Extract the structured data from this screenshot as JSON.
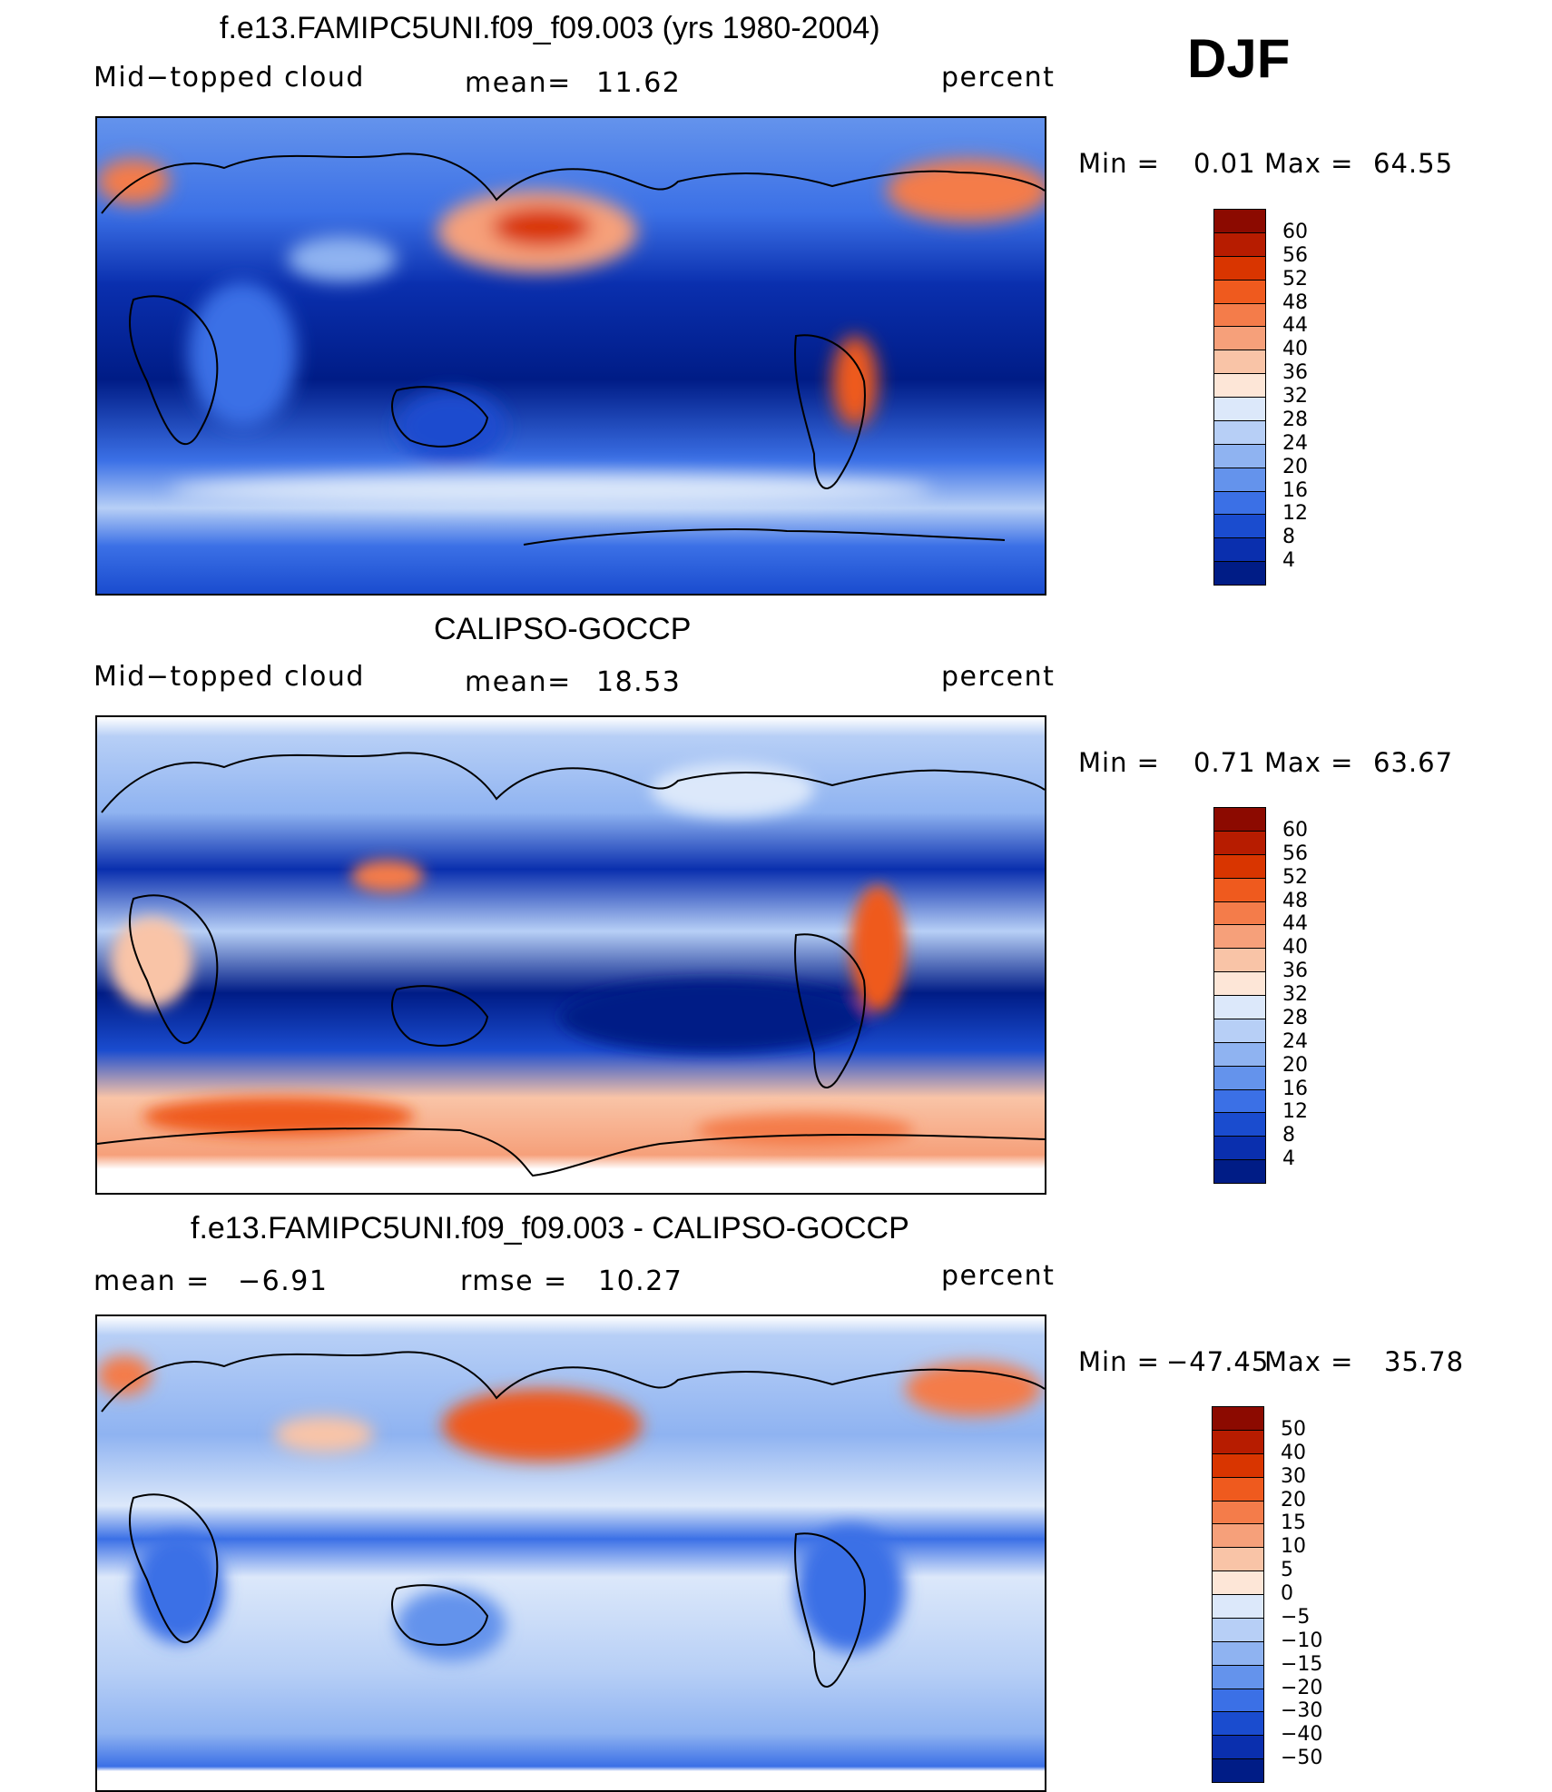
{
  "season": "DJF",
  "panels": [
    {
      "title": "f.e13.FAMIPC5UNI.f09_f09.003 (yrs 1980-2004)",
      "left_label": "Mid−topped  cloud",
      "center_label": "mean=",
      "center_value": "11.62",
      "right_label": "percent",
      "min_label": "Min  =",
      "min_value": "0.01",
      "max_label": "Max  =",
      "max_value": "64.55",
      "colorbar_ticks": [
        "60",
        "56",
        "52",
        "48",
        "44",
        "40",
        "36",
        "32",
        "28",
        "24",
        "20",
        "16",
        "12",
        "8",
        "4"
      ],
      "colorbar_colors": [
        "#8c0a00",
        "#b71c00",
        "#d93500",
        "#ef5a1e",
        "#f47c4a",
        "#f6a07a",
        "#f9c4a7",
        "#fde6d7",
        "#dce8fa",
        "#b7cff6",
        "#8fb3f1",
        "#6493ec",
        "#3b70e6",
        "#1a4ccf",
        "#0a2fae",
        "#001c86"
      ],
      "chart_data": {
        "type": "heatmap",
        "title": "f.e13.FAMIPC5UNI.f09_f09.003 (yrs 1980-2004)",
        "variable": "Mid−topped cloud",
        "units": "percent",
        "mean": 11.62,
        "min": 0.01,
        "max": 64.55,
        "contour_levels": [
          4,
          8,
          12,
          16,
          20,
          24,
          28,
          32,
          36,
          40,
          44,
          48,
          52,
          56,
          60
        ]
      }
    },
    {
      "title": "CALIPSO-GOCCP",
      "left_label": "Mid−topped  cloud",
      "center_label": "mean=",
      "center_value": "18.53",
      "right_label": "percent",
      "min_label": "Min  =",
      "min_value": "0.71",
      "max_label": "Max  =",
      "max_value": "63.67",
      "colorbar_ticks": [
        "60",
        "56",
        "52",
        "48",
        "44",
        "40",
        "36",
        "32",
        "28",
        "24",
        "20",
        "16",
        "12",
        "8",
        "4"
      ],
      "colorbar_colors": [
        "#8c0a00",
        "#b71c00",
        "#d93500",
        "#ef5a1e",
        "#f47c4a",
        "#f6a07a",
        "#f9c4a7",
        "#fde6d7",
        "#dce8fa",
        "#b7cff6",
        "#8fb3f1",
        "#6493ec",
        "#3b70e6",
        "#1a4ccf",
        "#0a2fae",
        "#001c86"
      ],
      "chart_data": {
        "type": "heatmap",
        "title": "CALIPSO-GOCCP",
        "variable": "Mid−topped cloud",
        "units": "percent",
        "mean": 18.53,
        "min": 0.71,
        "max": 63.67,
        "contour_levels": [
          4,
          8,
          12,
          16,
          20,
          24,
          28,
          32,
          36,
          40,
          44,
          48,
          52,
          56,
          60
        ]
      }
    },
    {
      "title": "f.e13.FAMIPC5UNI.f09_f09.003 - CALIPSO-GOCCP",
      "left_label": "mean  =",
      "left_value": "−6.91",
      "center_label": "rmse  =",
      "center_value": "10.27",
      "right_label": "percent",
      "min_label": "Min  =",
      "min_value": "−47.45",
      "max_label": "Max  =",
      "max_value": "35.78",
      "colorbar_ticks": [
        "50",
        "40",
        "30",
        "20",
        "15",
        "10",
        "5",
        "0",
        "−5",
        "−10",
        "−15",
        "−20",
        "−30",
        "−40",
        "−50"
      ],
      "colorbar_colors": [
        "#8c0a00",
        "#b71c00",
        "#d93500",
        "#ef5a1e",
        "#f47c4a",
        "#f6a07a",
        "#f9c4a7",
        "#fde6d7",
        "#dce8fa",
        "#b7cff6",
        "#8fb3f1",
        "#6493ec",
        "#3b70e6",
        "#1a4ccf",
        "#0a2fae",
        "#001c86"
      ],
      "chart_data": {
        "type": "heatmap",
        "title": "f.e13.FAMIPC5UNI.f09_f09.003 - CALIPSO-GOCCP",
        "units": "percent",
        "mean": -6.91,
        "rmse": 10.27,
        "min": -47.45,
        "max": 35.78,
        "contour_levels": [
          -50,
          -40,
          -30,
          -20,
          -15,
          -10,
          -5,
          0,
          5,
          10,
          15,
          20,
          30,
          40,
          50
        ]
      }
    }
  ]
}
